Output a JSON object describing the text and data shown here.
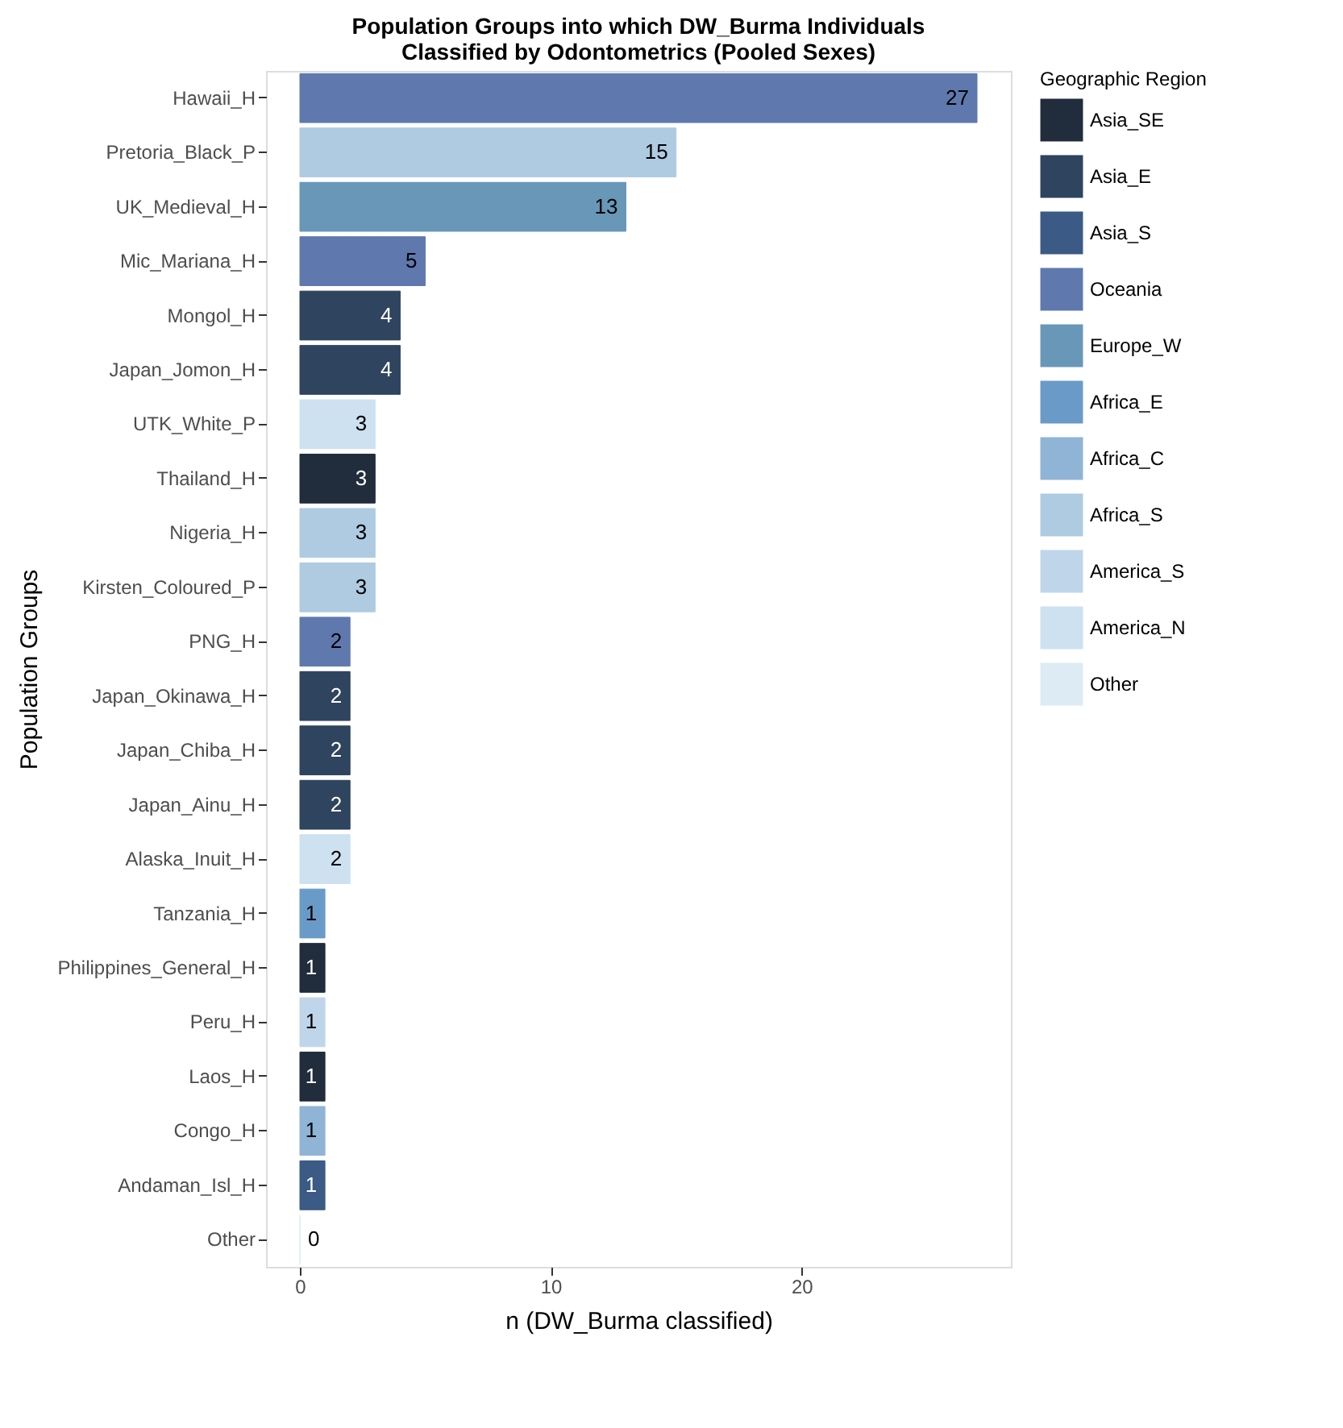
{
  "chart_data": {
    "type": "bar",
    "orientation": "horizontal",
    "data_labels": true,
    "title": [
      "Population Groups into which DW_Burma Individuals",
      "Classified by Odontometrics (Pooled Sexes)"
    ],
    "xlabel": "n (DW_Burma classified)",
    "ylabel": "Population Groups",
    "legend_title": "Geographic Region",
    "legend": "right",
    "grid": false,
    "xlim": [
      -1.35,
      28.35
    ],
    "xticks": [
      0,
      10,
      20
    ],
    "categories": [
      "Hawaii_H",
      "Pretoria_Black_P",
      "UK_Medieval_H",
      "Mic_Mariana_H",
      "Mongol_H",
      "Japan_Jomon_H",
      "UTK_White_P",
      "Thailand_H",
      "Nigeria_H",
      "Kirsten_Coloured_P",
      "PNG_H",
      "Japan_Okinawa_H",
      "Japan_Chiba_H",
      "Japan_Ainu_H",
      "Alaska_Inuit_H",
      "Tanzania_H",
      "Philippines_General_H",
      "Peru_H",
      "Laos_H",
      "Congo_H",
      "Andaman_Isl_H",
      "Other"
    ],
    "series": [
      {
        "name": "Asia_SE",
        "color": "#212d3d",
        "values": [
          null,
          null,
          null,
          null,
          null,
          null,
          null,
          3,
          null,
          null,
          null,
          null,
          null,
          null,
          null,
          null,
          1,
          null,
          1,
          null,
          null,
          null
        ]
      },
      {
        "name": "Asia_E",
        "color": "#2f445e",
        "values": [
          null,
          null,
          null,
          null,
          4,
          4,
          null,
          null,
          null,
          null,
          null,
          2,
          2,
          2,
          null,
          null,
          null,
          null,
          null,
          null,
          null,
          null
        ]
      },
      {
        "name": "Asia_S",
        "color": "#3b5a85",
        "values": [
          null,
          null,
          null,
          null,
          null,
          null,
          null,
          null,
          null,
          null,
          null,
          null,
          null,
          null,
          null,
          null,
          null,
          null,
          null,
          null,
          1,
          null
        ]
      },
      {
        "name": "Oceania",
        "color": "#5f79ae",
        "values": [
          27,
          null,
          null,
          5,
          null,
          null,
          null,
          null,
          null,
          null,
          2,
          null,
          null,
          null,
          null,
          null,
          null,
          null,
          null,
          null,
          null,
          null
        ]
      },
      {
        "name": "Europe_W",
        "color": "#6897b8",
        "values": [
          null,
          null,
          13,
          null,
          null,
          null,
          null,
          null,
          null,
          null,
          null,
          null,
          null,
          null,
          null,
          null,
          null,
          null,
          null,
          null,
          null,
          null
        ]
      },
      {
        "name": "Africa_E",
        "color": "#6a9bc8",
        "values": [
          null,
          null,
          null,
          null,
          null,
          null,
          null,
          null,
          null,
          null,
          null,
          null,
          null,
          null,
          null,
          1,
          null,
          null,
          null,
          null,
          null,
          null
        ]
      },
      {
        "name": "Africa_C",
        "color": "#8fb4d6",
        "values": [
          null,
          null,
          null,
          null,
          null,
          null,
          null,
          null,
          null,
          null,
          null,
          null,
          null,
          null,
          null,
          null,
          null,
          null,
          null,
          1,
          null,
          null
        ]
      },
      {
        "name": "Africa_S",
        "color": "#aecbe2",
        "values": [
          null,
          15,
          null,
          null,
          null,
          null,
          null,
          null,
          3,
          3,
          null,
          null,
          null,
          null,
          null,
          null,
          null,
          null,
          null,
          null,
          null,
          null
        ]
      },
      {
        "name": "America_S",
        "color": "#bfd6ea",
        "values": [
          null,
          null,
          null,
          null,
          null,
          null,
          null,
          null,
          null,
          null,
          null,
          null,
          null,
          null,
          null,
          null,
          null,
          1,
          null,
          null,
          null,
          null
        ]
      },
      {
        "name": "America_N",
        "color": "#cde1f0",
        "values": [
          null,
          null,
          null,
          null,
          null,
          null,
          3,
          null,
          null,
          null,
          null,
          null,
          null,
          null,
          2,
          null,
          null,
          null,
          null,
          null,
          null,
          null
        ]
      },
      {
        "name": "Other",
        "color": "#ddebf4",
        "values": [
          null,
          null,
          null,
          null,
          null,
          null,
          null,
          null,
          null,
          null,
          null,
          null,
          null,
          null,
          null,
          null,
          null,
          null,
          null,
          null,
          null,
          0
        ]
      }
    ]
  }
}
